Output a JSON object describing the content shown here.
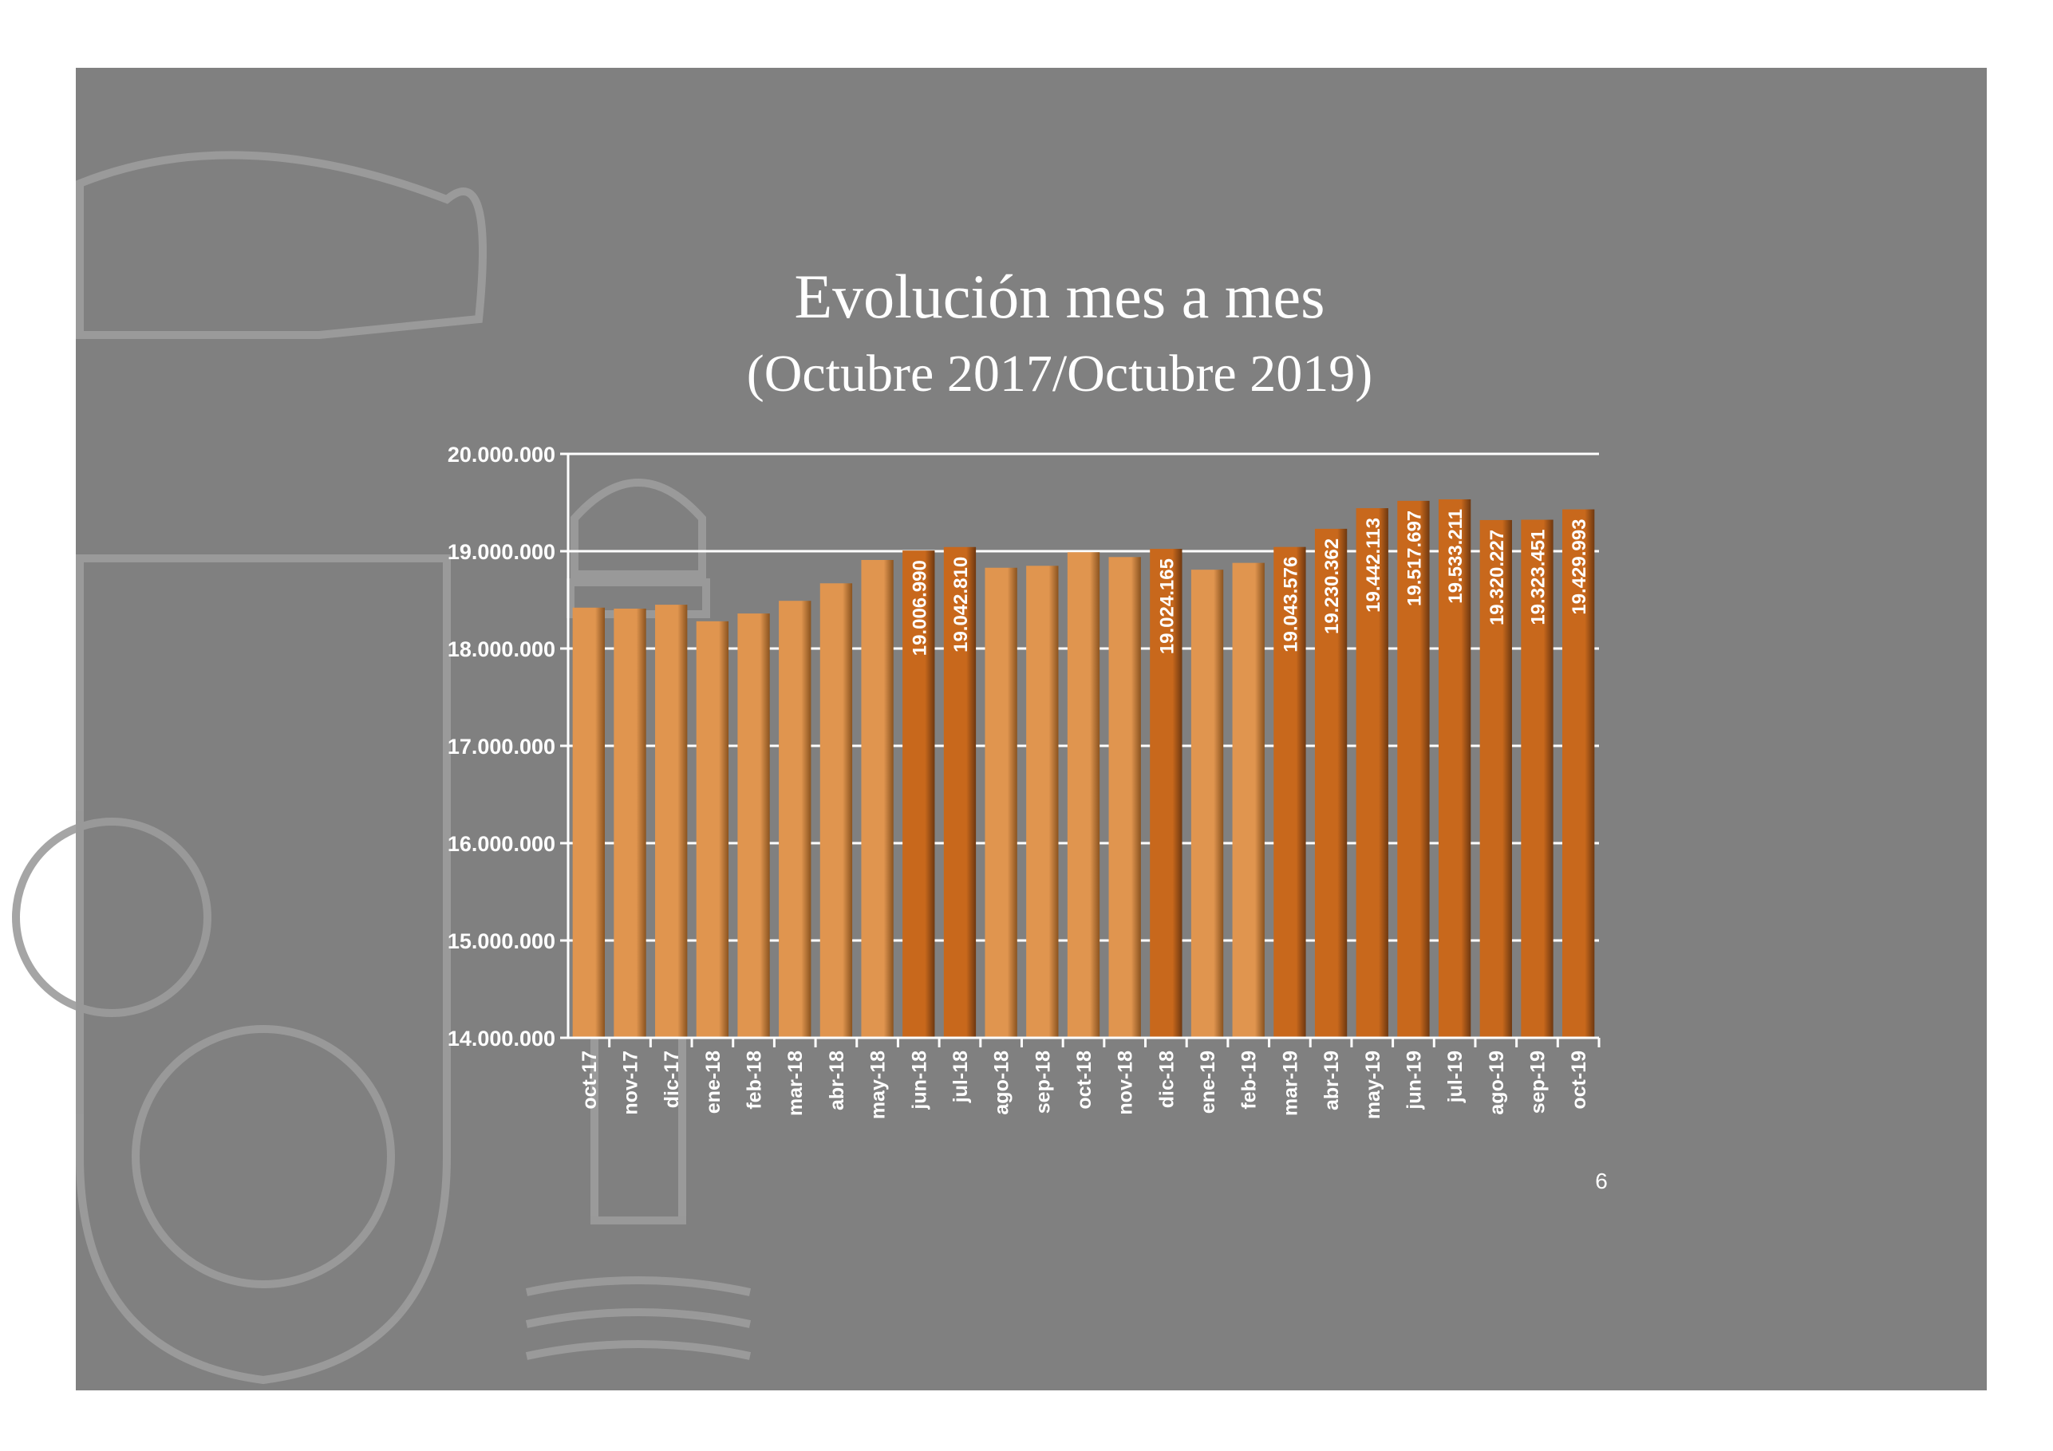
{
  "page_number": "6",
  "colors": {
    "background": "#808080",
    "bar_light": "#E0954F",
    "bar_dark": "#C8681C",
    "emblem": "#9a9a9a"
  },
  "chart_data": {
    "type": "bar",
    "title": "Evolución mes a mes",
    "subtitle": "(Octubre  2017/Octubre 2019)",
    "xlabel": "",
    "ylabel": "",
    "ylim": [
      14000000,
      20000000
    ],
    "yticks": [
      14000000,
      15000000,
      16000000,
      17000000,
      18000000,
      19000000,
      20000000
    ],
    "ytick_labels": [
      "14.000.000",
      "15.000.000",
      "16.000.000",
      "17.000.000",
      "18.000.000",
      "19.000.000",
      "20.000.000"
    ],
    "grid": true,
    "categories": [
      "oct-17",
      "nov-17",
      "dic-17",
      "ene-18",
      "feb-18",
      "mar-18",
      "abr-18",
      "may-18",
      "jun-18",
      "jul-18",
      "ago-18",
      "sep-18",
      "oct-18",
      "nov-18",
      "dic-18",
      "ene-19",
      "feb-19",
      "mar-19",
      "abr-19",
      "may-19",
      "jun-19",
      "jul-19",
      "ago-19",
      "sep-19",
      "oct-19"
    ],
    "values": [
      18420000,
      18410000,
      18450000,
      18280000,
      18360000,
      18490000,
      18670000,
      18910000,
      19006990,
      19042810,
      18830000,
      18850000,
      18990000,
      18940000,
      19024165,
      18810000,
      18880000,
      19043576,
      19230362,
      19442113,
      19517697,
      19533211,
      19320227,
      19323451,
      19429993
    ],
    "data_labels": [
      "",
      "",
      "",
      "",
      "",
      "",
      "",
      "",
      "19.006.990",
      "19.042.810",
      "",
      "",
      "",
      "",
      "19.024.165",
      "",
      "",
      "19.043.576",
      "19.230.362",
      "19.442.113",
      "19.517.697",
      "19.533.211",
      "19.320.227",
      "19.323.451",
      "19.429.993"
    ],
    "highlighted": [
      false,
      false,
      false,
      false,
      false,
      false,
      false,
      false,
      true,
      true,
      false,
      false,
      false,
      false,
      true,
      false,
      false,
      true,
      true,
      true,
      true,
      true,
      true,
      true,
      true
    ]
  }
}
